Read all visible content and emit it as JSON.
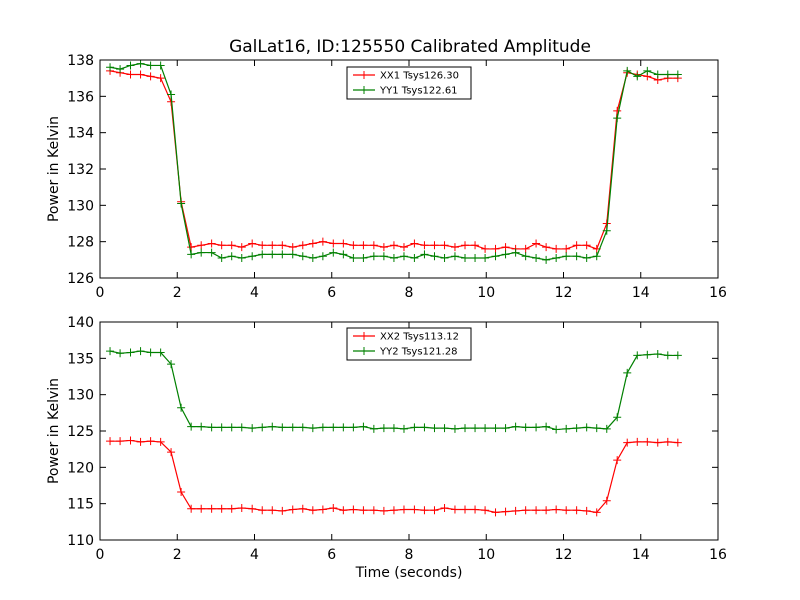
{
  "figure": {
    "title": "GalLat16, ID:125550 Calibrated Amplitude"
  },
  "chart_data": [
    {
      "type": "line",
      "title": "GalLat16, ID:125550 Calibrated Amplitude",
      "xlabel": "",
      "ylabel": "Power in Kelvin",
      "xlim": [
        0,
        16
      ],
      "ylim": [
        126,
        138
      ],
      "xticks": [
        0,
        2,
        4,
        6,
        8,
        10,
        12,
        14,
        16
      ],
      "yticks": [
        126,
        128,
        130,
        132,
        134,
        136,
        138
      ],
      "grid": false,
      "legend_position": "top-center",
      "x": [
        0.26,
        0.52,
        0.79,
        1.05,
        1.31,
        1.57,
        1.84,
        2.1,
        2.36,
        2.62,
        2.89,
        3.15,
        3.41,
        3.67,
        3.94,
        4.2,
        4.46,
        4.72,
        4.99,
        5.25,
        5.51,
        5.77,
        6.04,
        6.3,
        6.56,
        6.82,
        7.09,
        7.35,
        7.61,
        7.87,
        8.14,
        8.4,
        8.66,
        8.92,
        9.19,
        9.45,
        9.71,
        9.97,
        10.24,
        10.5,
        10.76,
        11.02,
        11.29,
        11.55,
        11.81,
        12.07,
        12.34,
        12.6,
        12.86,
        13.12,
        13.39,
        13.65,
        13.91,
        14.17,
        14.44,
        14.7,
        14.96
      ],
      "series": [
        {
          "name": "XX1 Tsys126.30",
          "color": "#ff0000",
          "values": [
            137.4,
            137.3,
            137.2,
            137.2,
            137.1,
            137.0,
            135.7,
            130.2,
            127.7,
            127.8,
            127.9,
            127.8,
            127.8,
            127.7,
            127.9,
            127.8,
            127.8,
            127.8,
            127.7,
            127.8,
            127.9,
            128.0,
            127.9,
            127.9,
            127.8,
            127.8,
            127.8,
            127.7,
            127.8,
            127.7,
            127.9,
            127.8,
            127.8,
            127.8,
            127.7,
            127.8,
            127.8,
            127.6,
            127.6,
            127.7,
            127.6,
            127.6,
            127.9,
            127.7,
            127.6,
            127.6,
            127.8,
            127.8,
            127.6,
            129.0,
            135.2,
            137.3,
            137.2,
            137.1,
            136.9,
            137.0,
            137.0
          ]
        },
        {
          "name": "YY1 Tsys122.61",
          "color": "#008000",
          "values": [
            137.6,
            137.5,
            137.7,
            137.8,
            137.7,
            137.7,
            136.1,
            130.1,
            127.3,
            127.4,
            127.4,
            127.1,
            127.2,
            127.1,
            127.2,
            127.3,
            127.3,
            127.3,
            127.3,
            127.2,
            127.1,
            127.2,
            127.4,
            127.3,
            127.1,
            127.1,
            127.2,
            127.2,
            127.1,
            127.2,
            127.1,
            127.3,
            127.2,
            127.1,
            127.2,
            127.1,
            127.1,
            127.1,
            127.2,
            127.3,
            127.4,
            127.2,
            127.1,
            127.0,
            127.1,
            127.2,
            127.2,
            127.1,
            127.2,
            128.6,
            134.8,
            137.4,
            137.1,
            137.4,
            137.2,
            137.2,
            137.2
          ]
        }
      ]
    },
    {
      "type": "line",
      "title": "",
      "xlabel": "Time (seconds)",
      "ylabel": "Power in Kelvin",
      "xlim": [
        0,
        16
      ],
      "ylim": [
        110,
        140
      ],
      "xticks": [
        0,
        2,
        4,
        6,
        8,
        10,
        12,
        14,
        16
      ],
      "yticks": [
        110,
        115,
        120,
        125,
        130,
        135,
        140
      ],
      "grid": false,
      "legend_position": "top-center",
      "x": [
        0.26,
        0.52,
        0.79,
        1.05,
        1.31,
        1.57,
        1.84,
        2.1,
        2.36,
        2.62,
        2.89,
        3.15,
        3.41,
        3.67,
        3.94,
        4.2,
        4.46,
        4.72,
        4.99,
        5.25,
        5.51,
        5.77,
        6.04,
        6.3,
        6.56,
        6.82,
        7.09,
        7.35,
        7.61,
        7.87,
        8.14,
        8.4,
        8.66,
        8.92,
        9.19,
        9.45,
        9.71,
        9.97,
        10.24,
        10.5,
        10.76,
        11.02,
        11.29,
        11.55,
        11.81,
        12.07,
        12.34,
        12.6,
        12.86,
        13.12,
        13.39,
        13.65,
        13.91,
        14.17,
        14.44,
        14.7,
        14.96
      ],
      "series": [
        {
          "name": "XX2 Tsys113.12",
          "color": "#ff0000",
          "values": [
            123.6,
            123.6,
            123.7,
            123.5,
            123.6,
            123.5,
            122.1,
            116.6,
            114.3,
            114.3,
            114.3,
            114.3,
            114.3,
            114.4,
            114.3,
            114.1,
            114.1,
            114.0,
            114.2,
            114.3,
            114.1,
            114.2,
            114.4,
            114.1,
            114.2,
            114.1,
            114.1,
            114.0,
            114.1,
            114.2,
            114.2,
            114.1,
            114.1,
            114.4,
            114.2,
            114.2,
            114.2,
            114.1,
            113.8,
            113.9,
            114.0,
            114.1,
            114.1,
            114.1,
            114.2,
            114.1,
            114.1,
            114.0,
            113.8,
            115.4,
            121.0,
            123.4,
            123.5,
            123.5,
            123.4,
            123.5,
            123.4
          ]
        },
        {
          "name": "YY2 Tsys121.28",
          "color": "#008000",
          "values": [
            136.0,
            135.7,
            135.8,
            136.0,
            135.8,
            135.8,
            134.2,
            128.2,
            125.6,
            125.6,
            125.5,
            125.5,
            125.5,
            125.5,
            125.4,
            125.5,
            125.6,
            125.5,
            125.5,
            125.5,
            125.4,
            125.5,
            125.5,
            125.5,
            125.5,
            125.6,
            125.3,
            125.4,
            125.4,
            125.3,
            125.5,
            125.5,
            125.4,
            125.4,
            125.3,
            125.4,
            125.4,
            125.4,
            125.4,
            125.4,
            125.6,
            125.5,
            125.5,
            125.6,
            125.2,
            125.3,
            125.4,
            125.5,
            125.4,
            125.3,
            126.9,
            133.0,
            135.4,
            135.5,
            135.6,
            135.4,
            135.4
          ]
        }
      ]
    }
  ]
}
